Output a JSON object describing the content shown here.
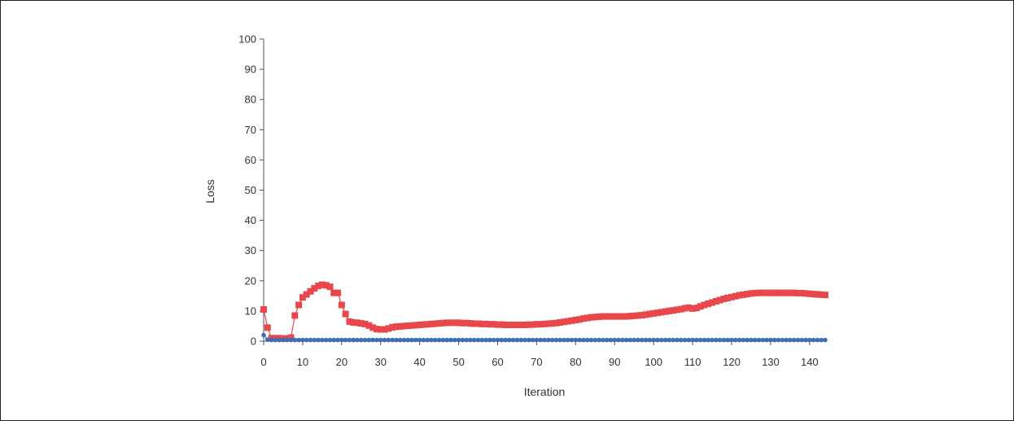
{
  "chart_data": {
    "type": "line",
    "title": "",
    "xlabel": "Iteration",
    "ylabel": "Loss",
    "xlim": [
      0,
      144
    ],
    "ylim": [
      0,
      100
    ],
    "xticks": [
      "0",
      "10",
      "20",
      "30",
      "40",
      "50",
      "60",
      "70",
      "80",
      "90",
      "100",
      "110",
      "120",
      "130",
      "140"
    ],
    "yticks": [
      "0",
      "10",
      "20",
      "30",
      "40",
      "50",
      "60",
      "70",
      "80",
      "90",
      "100"
    ],
    "grid": false,
    "legend": "none",
    "series": [
      {
        "color": "#e8474b",
        "marker": "square",
        "points": [
          [
            0,
            10.5
          ],
          [
            1,
            4.5
          ],
          [
            2,
            1.0
          ],
          [
            3,
            1.0
          ],
          [
            4,
            1.0
          ],
          [
            5,
            0.9
          ],
          [
            6,
            0.9
          ],
          [
            7,
            1.2
          ],
          [
            8,
            8.5
          ],
          [
            9,
            12
          ],
          [
            10,
            14.5
          ],
          [
            11,
            15.5
          ],
          [
            12,
            16.5
          ],
          [
            13,
            17.5
          ],
          [
            14,
            18.3
          ],
          [
            15,
            18.7
          ],
          [
            16,
            18.5
          ],
          [
            17,
            18
          ],
          [
            18,
            16
          ],
          [
            19,
            16
          ],
          [
            20,
            12
          ],
          [
            21,
            9
          ],
          [
            22,
            6.5
          ],
          [
            23,
            6.2
          ],
          [
            24,
            6.1
          ],
          [
            25,
            5.9
          ],
          [
            26,
            5.7
          ],
          [
            27,
            5.2
          ],
          [
            28,
            4.5
          ],
          [
            29,
            4.0
          ],
          [
            30,
            3.9
          ],
          [
            31,
            3.9
          ],
          [
            32,
            4.2
          ],
          [
            33,
            4.6
          ],
          [
            34,
            4.8
          ],
          [
            35,
            4.9
          ],
          [
            36,
            5.0
          ],
          [
            37,
            5.1
          ],
          [
            38,
            5.2
          ],
          [
            39,
            5.3
          ],
          [
            40,
            5.4
          ],
          [
            41,
            5.5
          ],
          [
            42,
            5.6
          ],
          [
            43,
            5.7
          ],
          [
            44,
            5.8
          ],
          [
            45,
            5.9
          ],
          [
            46,
            6.0
          ],
          [
            47,
            6.1
          ],
          [
            48,
            6.1
          ],
          [
            49,
            6.1
          ],
          [
            50,
            6.1
          ],
          [
            51,
            6.0
          ],
          [
            52,
            6.0
          ],
          [
            53,
            5.9
          ],
          [
            54,
            5.8
          ],
          [
            55,
            5.8
          ],
          [
            56,
            5.7
          ],
          [
            57,
            5.7
          ],
          [
            58,
            5.6
          ],
          [
            59,
            5.6
          ],
          [
            60,
            5.5
          ],
          [
            61,
            5.5
          ],
          [
            62,
            5.4
          ],
          [
            63,
            5.4
          ],
          [
            64,
            5.4
          ],
          [
            65,
            5.4
          ],
          [
            66,
            5.4
          ],
          [
            67,
            5.4
          ],
          [
            68,
            5.5
          ],
          [
            69,
            5.5
          ],
          [
            70,
            5.6
          ],
          [
            71,
            5.6
          ],
          [
            72,
            5.7
          ],
          [
            73,
            5.8
          ],
          [
            74,
            5.9
          ],
          [
            75,
            6.0
          ],
          [
            76,
            6.2
          ],
          [
            77,
            6.4
          ],
          [
            78,
            6.6
          ],
          [
            79,
            6.8
          ],
          [
            80,
            7.0
          ],
          [
            81,
            7.2
          ],
          [
            82,
            7.5
          ],
          [
            83,
            7.7
          ],
          [
            84,
            7.9
          ],
          [
            85,
            8.0
          ],
          [
            86,
            8.1
          ],
          [
            87,
            8.2
          ],
          [
            88,
            8.2
          ],
          [
            89,
            8.2
          ],
          [
            90,
            8.2
          ],
          [
            91,
            8.2
          ],
          [
            92,
            8.2
          ],
          [
            93,
            8.2
          ],
          [
            94,
            8.3
          ],
          [
            95,
            8.4
          ],
          [
            96,
            8.5
          ],
          [
            97,
            8.6
          ],
          [
            98,
            8.8
          ],
          [
            99,
            9.0
          ],
          [
            100,
            9.2
          ],
          [
            101,
            9.4
          ],
          [
            102,
            9.6
          ],
          [
            103,
            9.8
          ],
          [
            104,
            10.0
          ],
          [
            105,
            10.2
          ],
          [
            106,
            10.4
          ],
          [
            107,
            10.6
          ],
          [
            108,
            10.9
          ],
          [
            109,
            11.1
          ],
          [
            110,
            10.8
          ],
          [
            111,
            11.0
          ],
          [
            112,
            11.5
          ],
          [
            113,
            12.0
          ],
          [
            114,
            12.4
          ],
          [
            115,
            12.8
          ],
          [
            116,
            13.2
          ],
          [
            117,
            13.6
          ],
          [
            118,
            14.0
          ],
          [
            119,
            14.3
          ],
          [
            120,
            14.6
          ],
          [
            121,
            14.9
          ],
          [
            122,
            15.2
          ],
          [
            123,
            15.4
          ],
          [
            124,
            15.6
          ],
          [
            125,
            15.8
          ],
          [
            126,
            15.9
          ],
          [
            127,
            16.0
          ],
          [
            128,
            16.0
          ],
          [
            129,
            16.0
          ],
          [
            130,
            16.0
          ],
          [
            131,
            16.0
          ],
          [
            132,
            16.0
          ],
          [
            133,
            16.0
          ],
          [
            134,
            16.0
          ],
          [
            135,
            16.0
          ],
          [
            136,
            16.0
          ],
          [
            137,
            15.9
          ],
          [
            138,
            15.9
          ],
          [
            139,
            15.8
          ],
          [
            140,
            15.7
          ],
          [
            141,
            15.6
          ],
          [
            142,
            15.5
          ],
          [
            143,
            15.4
          ],
          [
            144,
            15.3
          ]
        ]
      },
      {
        "color": "#3a6fb5",
        "marker": "circle",
        "points": [
          [
            0,
            2.0
          ],
          [
            1,
            0.5
          ],
          [
            2,
            0.4
          ],
          [
            3,
            0.4
          ],
          [
            4,
            0.4
          ],
          [
            5,
            0.4
          ],
          [
            6,
            0.4
          ],
          [
            7,
            0.4
          ],
          [
            8,
            0.4
          ],
          [
            9,
            0.4
          ],
          [
            10,
            0.4
          ],
          [
            11,
            0.4
          ],
          [
            12,
            0.4
          ],
          [
            13,
            0.4
          ],
          [
            14,
            0.4
          ],
          [
            15,
            0.4
          ],
          [
            16,
            0.4
          ],
          [
            17,
            0.4
          ],
          [
            18,
            0.4
          ],
          [
            19,
            0.4
          ],
          [
            20,
            0.4
          ],
          [
            21,
            0.4
          ],
          [
            22,
            0.4
          ],
          [
            23,
            0.4
          ],
          [
            24,
            0.4
          ],
          [
            25,
            0.4
          ],
          [
            26,
            0.4
          ],
          [
            27,
            0.4
          ],
          [
            28,
            0.4
          ],
          [
            29,
            0.4
          ],
          [
            30,
            0.4
          ],
          [
            31,
            0.4
          ],
          [
            32,
            0.4
          ],
          [
            33,
            0.4
          ],
          [
            34,
            0.4
          ],
          [
            35,
            0.4
          ],
          [
            36,
            0.4
          ],
          [
            37,
            0.4
          ],
          [
            38,
            0.4
          ],
          [
            39,
            0.4
          ],
          [
            40,
            0.4
          ],
          [
            41,
            0.4
          ],
          [
            42,
            0.4
          ],
          [
            43,
            0.4
          ],
          [
            44,
            0.4
          ],
          [
            45,
            0.4
          ],
          [
            46,
            0.4
          ],
          [
            47,
            0.4
          ],
          [
            48,
            0.4
          ],
          [
            49,
            0.4
          ],
          [
            50,
            0.4
          ],
          [
            51,
            0.4
          ],
          [
            52,
            0.4
          ],
          [
            53,
            0.4
          ],
          [
            54,
            0.4
          ],
          [
            55,
            0.4
          ],
          [
            56,
            0.4
          ],
          [
            57,
            0.4
          ],
          [
            58,
            0.4
          ],
          [
            59,
            0.4
          ],
          [
            60,
            0.4
          ],
          [
            61,
            0.4
          ],
          [
            62,
            0.4
          ],
          [
            63,
            0.4
          ],
          [
            64,
            0.4
          ],
          [
            65,
            0.4
          ],
          [
            66,
            0.4
          ],
          [
            67,
            0.4
          ],
          [
            68,
            0.4
          ],
          [
            69,
            0.4
          ],
          [
            70,
            0.4
          ],
          [
            71,
            0.4
          ],
          [
            72,
            0.4
          ],
          [
            73,
            0.4
          ],
          [
            74,
            0.4
          ],
          [
            75,
            0.4
          ],
          [
            76,
            0.4
          ],
          [
            77,
            0.4
          ],
          [
            78,
            0.4
          ],
          [
            79,
            0.4
          ],
          [
            80,
            0.4
          ],
          [
            81,
            0.4
          ],
          [
            82,
            0.4
          ],
          [
            83,
            0.4
          ],
          [
            84,
            0.4
          ],
          [
            85,
            0.4
          ],
          [
            86,
            0.4
          ],
          [
            87,
            0.4
          ],
          [
            88,
            0.4
          ],
          [
            89,
            0.4
          ],
          [
            90,
            0.4
          ],
          [
            91,
            0.4
          ],
          [
            92,
            0.4
          ],
          [
            93,
            0.4
          ],
          [
            94,
            0.4
          ],
          [
            95,
            0.4
          ],
          [
            96,
            0.4
          ],
          [
            97,
            0.4
          ],
          [
            98,
            0.4
          ],
          [
            99,
            0.4
          ],
          [
            100,
            0.4
          ],
          [
            101,
            0.4
          ],
          [
            102,
            0.4
          ],
          [
            103,
            0.4
          ],
          [
            104,
            0.4
          ],
          [
            105,
            0.4
          ],
          [
            106,
            0.4
          ],
          [
            107,
            0.4
          ],
          [
            108,
            0.4
          ],
          [
            109,
            0.4
          ],
          [
            110,
            0.4
          ],
          [
            111,
            0.4
          ],
          [
            112,
            0.4
          ],
          [
            113,
            0.4
          ],
          [
            114,
            0.4
          ],
          [
            115,
            0.4
          ],
          [
            116,
            0.4
          ],
          [
            117,
            0.4
          ],
          [
            118,
            0.4
          ],
          [
            119,
            0.4
          ],
          [
            120,
            0.4
          ],
          [
            121,
            0.4
          ],
          [
            122,
            0.4
          ],
          [
            123,
            0.4
          ],
          [
            124,
            0.4
          ],
          [
            125,
            0.4
          ],
          [
            126,
            0.4
          ],
          [
            127,
            0.4
          ],
          [
            128,
            0.4
          ],
          [
            129,
            0.4
          ],
          [
            130,
            0.4
          ],
          [
            131,
            0.4
          ],
          [
            132,
            0.4
          ],
          [
            133,
            0.4
          ],
          [
            134,
            0.4
          ],
          [
            135,
            0.4
          ],
          [
            136,
            0.4
          ],
          [
            137,
            0.4
          ],
          [
            138,
            0.4
          ],
          [
            139,
            0.4
          ],
          [
            140,
            0.4
          ],
          [
            141,
            0.4
          ],
          [
            142,
            0.4
          ],
          [
            143,
            0.4
          ],
          [
            144,
            0.4
          ]
        ]
      }
    ]
  }
}
